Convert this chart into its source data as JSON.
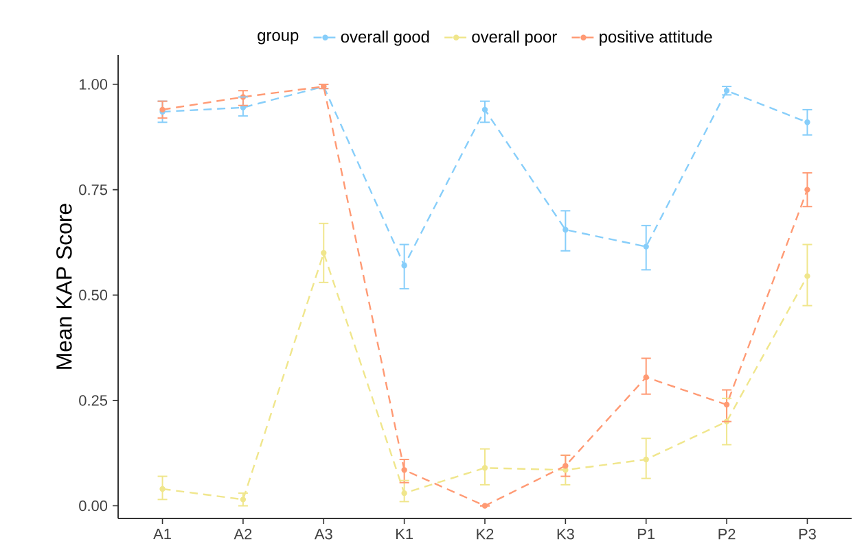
{
  "chart_data": {
    "type": "line",
    "ylabel": "Mean KAP Score",
    "legend_title": "group",
    "categories": [
      "A1",
      "A2",
      "A3",
      "K1",
      "K2",
      "K3",
      "P1",
      "P2",
      "P3"
    ],
    "series": [
      {
        "name": "overall good",
        "color": "#87cefa",
        "values": [
          0.935,
          0.945,
          0.995,
          0.57,
          0.94,
          0.655,
          0.615,
          0.985,
          0.91
        ],
        "errors": [
          [
            0.91,
            0.96
          ],
          [
            0.925,
            0.97
          ],
          [
            0.99,
            1.0
          ],
          [
            0.515,
            0.62
          ],
          [
            0.91,
            0.96
          ],
          [
            0.605,
            0.7
          ],
          [
            0.56,
            0.665
          ],
          [
            0.975,
            0.995
          ],
          [
            0.88,
            0.94
          ]
        ]
      },
      {
        "name": "overall poor",
        "color": "#f0e68c",
        "values": [
          0.04,
          0.015,
          0.6,
          0.03,
          0.09,
          0.085,
          0.11,
          0.2,
          0.545
        ],
        "errors": [
          [
            0.015,
            0.07
          ],
          [
            0.0,
            0.03
          ],
          [
            0.53,
            0.67
          ],
          [
            0.01,
            0.06
          ],
          [
            0.05,
            0.135
          ],
          [
            0.05,
            0.12
          ],
          [
            0.065,
            0.16
          ],
          [
            0.145,
            0.255
          ],
          [
            0.475,
            0.62
          ]
        ]
      },
      {
        "name": "positive attitude",
        "color": "#ff9a74",
        "values": [
          0.94,
          0.97,
          0.995,
          0.085,
          0.0,
          0.095,
          0.305,
          0.24,
          0.75
        ],
        "errors": [
          [
            0.92,
            0.96
          ],
          [
            0.95,
            0.985
          ],
          [
            0.99,
            1.0
          ],
          [
            0.055,
            0.11
          ],
          [
            0.0,
            0.0
          ],
          [
            0.07,
            0.12
          ],
          [
            0.265,
            0.35
          ],
          [
            0.2,
            0.275
          ],
          [
            0.71,
            0.79
          ]
        ]
      }
    ],
    "ylim": [
      -0.03,
      1.07
    ],
    "yticks": [
      {
        "value": 0,
        "label": "0.00"
      },
      {
        "value": 0.25,
        "label": "0.25"
      },
      {
        "value": 0.5,
        "label": "0.50"
      },
      {
        "value": 0.75,
        "label": "0.75"
      },
      {
        "value": 1,
        "label": "1.00"
      }
    ],
    "grid": false,
    "legend": "top",
    "marker": "circle",
    "line_style": "dashed"
  }
}
